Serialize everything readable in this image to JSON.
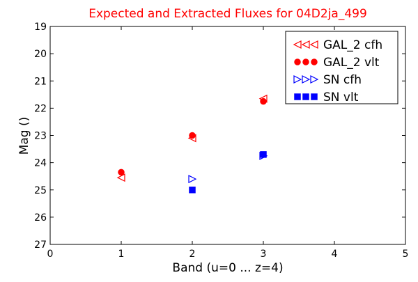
{
  "chart_data": {
    "type": "scatter",
    "title": "Expected and Extracted Fluxes for 04D2ja_499",
    "title_color": "#ff0000",
    "xlabel": "Band (u=0 ... z=4)",
    "ylabel": "Mag ()",
    "xlim": [
      0,
      5
    ],
    "ylim": [
      27,
      19
    ],
    "y_inverted": true,
    "xticks": [
      "0",
      "1",
      "2",
      "3",
      "4",
      "5"
    ],
    "yticks": [
      "19",
      "20",
      "21",
      "22",
      "23",
      "24",
      "25",
      "26",
      "27"
    ],
    "grid": false,
    "legend_placement": "top-right",
    "series": [
      {
        "name": "GAL_2 cfh",
        "marker": "triangle-left-open",
        "color": "#ff0000",
        "x": [
          1,
          2,
          3
        ],
        "y": [
          24.55,
          23.1,
          21.65
        ]
      },
      {
        "name": "GAL_2 vlt",
        "marker": "circle-filled",
        "color": "#ff0000",
        "x": [
          1,
          2,
          3
        ],
        "y": [
          24.35,
          23.0,
          21.75
        ]
      },
      {
        "name": "SN cfh",
        "marker": "triangle-right-open",
        "color": "#0000ff",
        "x": [
          2,
          3
        ],
        "y": [
          24.6,
          23.75
        ]
      },
      {
        "name": "SN vlt",
        "marker": "square-filled",
        "color": "#0000ff",
        "x": [
          2,
          3
        ],
        "y": [
          25.0,
          23.7
        ]
      }
    ]
  }
}
